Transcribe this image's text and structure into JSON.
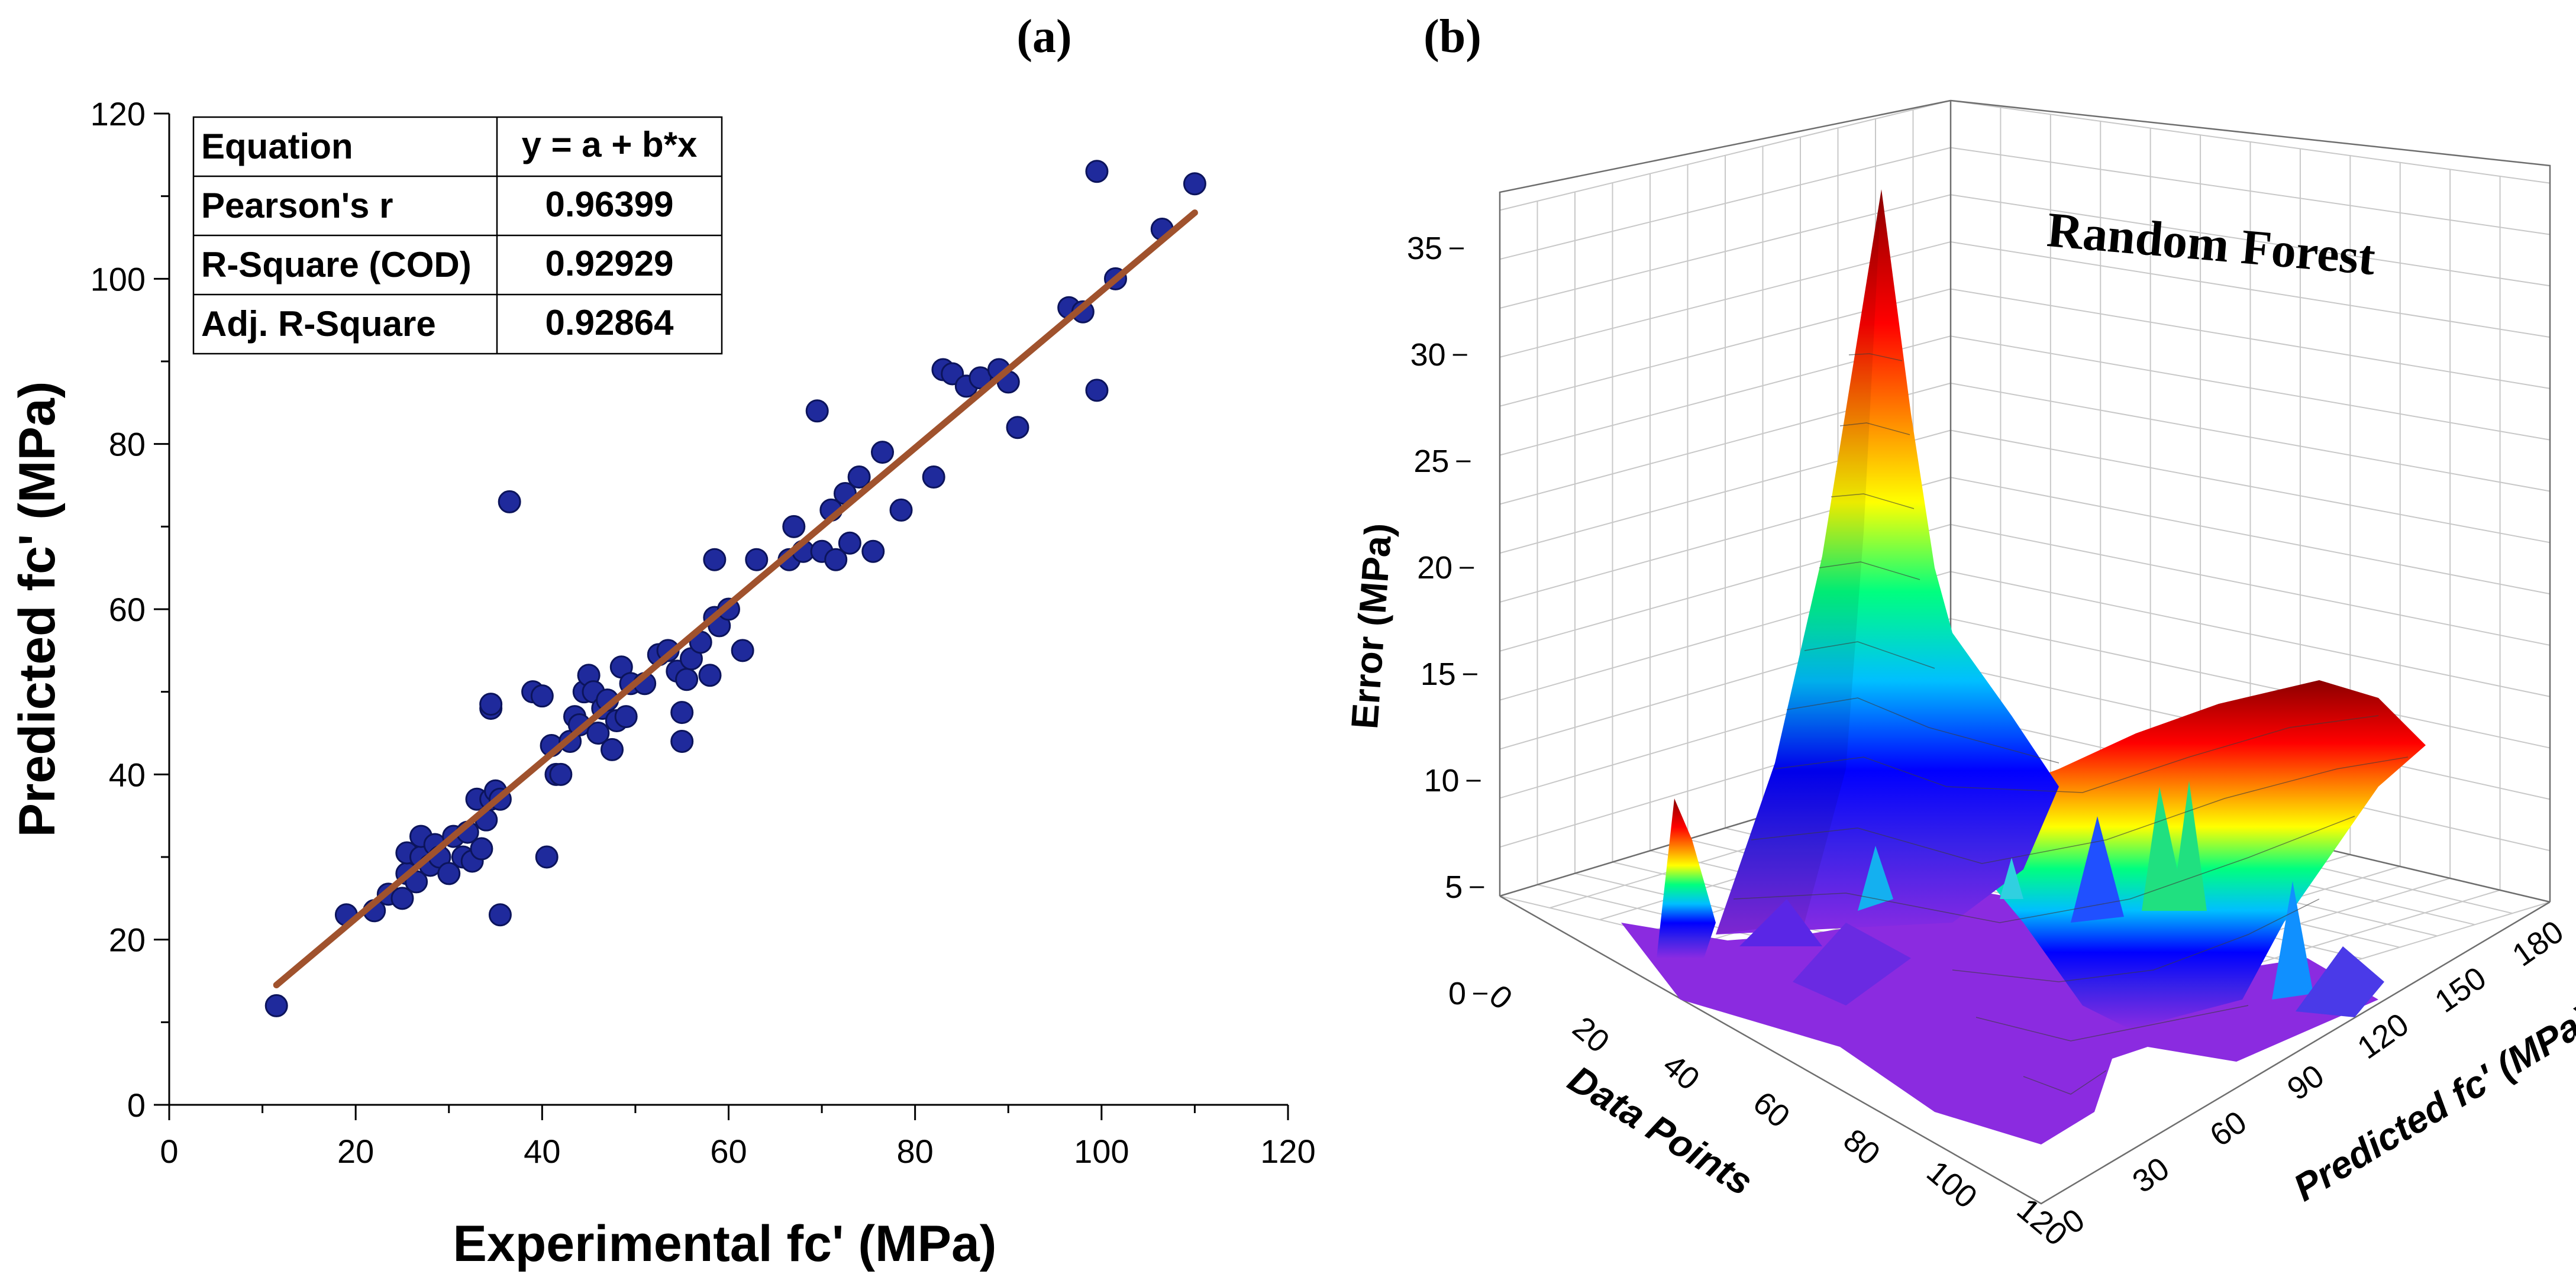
{
  "panels": {
    "a_label": "(a)",
    "b_label": "(b)"
  },
  "stats_table": {
    "rows": [
      {
        "label": "Equation",
        "value": "y = a + b*x"
      },
      {
        "label": "Pearson's r",
        "value": "0.96399"
      },
      {
        "label": "R-Square (COD)",
        "value": "0.92929"
      },
      {
        "label": "Adj. R-Square",
        "value": "0.92864"
      }
    ]
  },
  "colors": {
    "points": "#1f2a9c",
    "point_edge": "#0c145c",
    "fit_line": "#a0522d",
    "surface_low": "#8a2be2",
    "surface_high": "#8b0000"
  },
  "chart_data": [
    {
      "type": "scatter",
      "title": "",
      "xlabel": "Experimental fc' (MPa)",
      "ylabel": "Predicted fc' (MPa)",
      "xlim": [
        0,
        120
      ],
      "ylim": [
        0,
        120
      ],
      "xticks": [
        "0",
        "20",
        "40",
        "60",
        "80",
        "100",
        "120"
      ],
      "yticks": [
        "0",
        "20",
        "40",
        "60",
        "80",
        "100",
        "120"
      ],
      "fit_line": {
        "x": [
          11.5,
          110
        ],
        "y": [
          14.5,
          108
        ]
      },
      "points": [
        [
          11.5,
          12
        ],
        [
          19,
          23
        ],
        [
          22,
          23.5
        ],
        [
          23.5,
          25.5
        ],
        [
          25,
          25
        ],
        [
          25.5,
          28
        ],
        [
          25.5,
          30.5
        ],
        [
          26.5,
          27
        ],
        [
          27,
          30
        ],
        [
          27,
          32.5
        ],
        [
          28,
          29
        ],
        [
          28.5,
          31.5
        ],
        [
          29,
          30
        ],
        [
          30,
          28
        ],
        [
          30.5,
          32.5
        ],
        [
          31.5,
          30
        ],
        [
          32,
          33
        ],
        [
          32.5,
          29.5
        ],
        [
          33.5,
          31
        ],
        [
          33,
          37
        ],
        [
          34,
          34.5
        ],
        [
          34.5,
          37
        ],
        [
          35,
          38
        ],
        [
          35.5,
          37
        ],
        [
          35.5,
          23
        ],
        [
          34.5,
          48
        ],
        [
          34.5,
          48.5
        ],
        [
          36.5,
          73
        ],
        [
          39,
          50
        ],
        [
          40,
          49.5
        ],
        [
          40.5,
          30
        ],
        [
          41,
          43.5
        ],
        [
          41.5,
          40
        ],
        [
          42,
          40
        ],
        [
          43,
          44
        ],
        [
          43.5,
          47
        ],
        [
          44,
          46
        ],
        [
          44.5,
          50
        ],
        [
          45,
          52
        ],
        [
          45.5,
          50
        ],
        [
          46,
          45
        ],
        [
          46.5,
          48
        ],
        [
          47,
          49
        ],
        [
          47.5,
          43
        ],
        [
          48,
          46.5
        ],
        [
          48.5,
          53
        ],
        [
          49,
          47
        ],
        [
          49.5,
          51
        ],
        [
          51,
          51
        ],
        [
          52.5,
          54.5
        ],
        [
          53.5,
          55
        ],
        [
          54.5,
          52.5
        ],
        [
          55,
          47.5
        ],
        [
          55,
          44
        ],
        [
          55.5,
          51.5
        ],
        [
          56,
          54
        ],
        [
          57,
          56
        ],
        [
          58,
          52
        ],
        [
          58.5,
          59
        ],
        [
          58.5,
          66
        ],
        [
          59,
          58
        ],
        [
          60,
          60
        ],
        [
          61.5,
          55
        ],
        [
          63,
          66
        ],
        [
          66.5,
          66
        ],
        [
          67,
          70
        ],
        [
          68,
          67
        ],
        [
          69.5,
          84
        ],
        [
          70,
          67
        ],
        [
          71,
          72
        ],
        [
          71.5,
          66
        ],
        [
          72.5,
          74
        ],
        [
          73,
          68
        ],
        [
          74,
          76
        ],
        [
          75.5,
          67
        ],
        [
          76.5,
          79
        ],
        [
          78.5,
          72
        ],
        [
          82,
          76
        ],
        [
          83,
          89
        ],
        [
          84,
          88.5
        ],
        [
          85.5,
          87
        ],
        [
          87,
          88
        ],
        [
          89,
          89
        ],
        [
          90,
          87.5
        ],
        [
          91,
          82
        ],
        [
          96.5,
          96.5
        ],
        [
          98,
          96
        ],
        [
          99.5,
          113
        ],
        [
          99.5,
          86.5
        ],
        [
          101.5,
          100
        ],
        [
          106.5,
          106
        ],
        [
          110,
          111.5
        ]
      ]
    },
    {
      "type": "surface3d",
      "title": "Random Forest",
      "xlabel": "Data Points",
      "ylabel": "Predicted fc' (MPa)",
      "zlabel": "Error (MPa)",
      "xlim": [
        0,
        120
      ],
      "ylim": [
        0,
        180
      ],
      "zlim": [
        0,
        35
      ],
      "xticks": [
        "0",
        "20",
        "40",
        "60",
        "80",
        "100",
        "120"
      ],
      "yticks": [
        "0",
        "30",
        "60",
        "90",
        "120",
        "150",
        "180"
      ],
      "zticks": [
        "0",
        "5",
        "10",
        "15",
        "20",
        "25",
        "30",
        "35"
      ],
      "peak_error": 35,
      "colormap": [
        "#8a2be2",
        "#0000ff",
        "#00bfff",
        "#00ff7f",
        "#ffff00",
        "#ff7f00",
        "#ff0000",
        "#8b0000"
      ]
    }
  ]
}
